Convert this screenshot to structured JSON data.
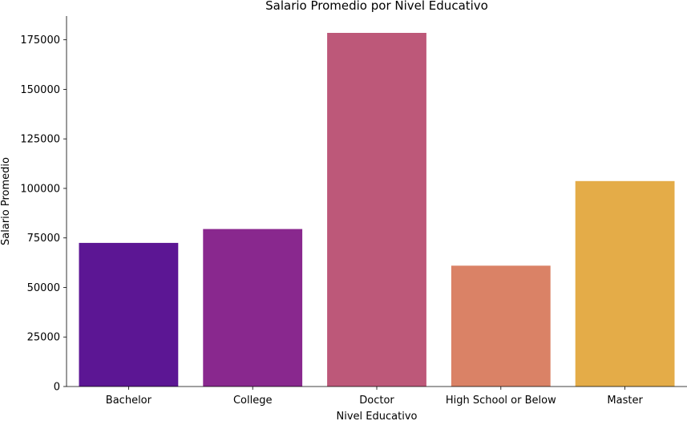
{
  "chart_data": {
    "type": "bar",
    "title": "Salario Promedio por Nivel Educativo",
    "xlabel": "Nivel Educativo",
    "ylabel": "Salario Promedio",
    "categories": [
      "Bachelor",
      "College",
      "Doctor",
      "High School or Below",
      "Master"
    ],
    "values": [
      72500,
      79500,
      178500,
      61000,
      103700
    ],
    "colors": [
      "#5c1694",
      "#89288e",
      "#bd5879",
      "#da8266",
      "#e4ac48"
    ],
    "ylim": [
      0,
      187000
    ],
    "yticks": [
      0,
      25000,
      50000,
      75000,
      100000,
      125000,
      150000,
      175000
    ],
    "grid": false,
    "legend": "none"
  }
}
